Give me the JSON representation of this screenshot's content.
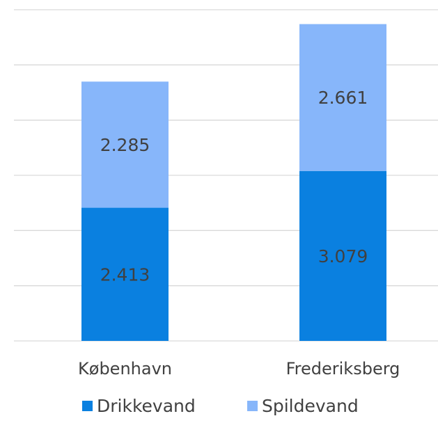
{
  "chart_data": {
    "type": "stacked_bar",
    "categories": [
      "København",
      "Frederiksberg"
    ],
    "series": [
      {
        "name": "Drikkevand",
        "color": "#0a80e0",
        "values": [
          2.413,
          3.079
        ]
      },
      {
        "name": "Spildevand",
        "color": "#87b6fa",
        "values": [
          2.285,
          2.661
        ]
      }
    ],
    "ylim": [
      0,
      6
    ],
    "yticks": [
      0,
      1,
      2,
      3,
      4,
      5,
      6
    ],
    "grid": true
  }
}
